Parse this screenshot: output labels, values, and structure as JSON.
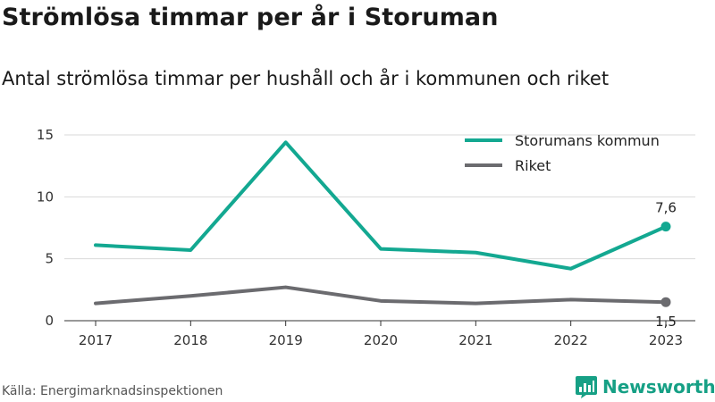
{
  "title": "Strömlösa timmar per år i Storuman",
  "subtitle": "Antal strömlösa timmar per hushåll och år i kommunen och riket",
  "source": "Källa: Energimarknadsinspektionen",
  "brand": {
    "name": "Newsworthy",
    "icon": "newsworthy-logo-icon",
    "color": "#16a085"
  },
  "chart_data": {
    "type": "line",
    "x": [
      "2017",
      "2018",
      "2019",
      "2020",
      "2021",
      "2022",
      "2023"
    ],
    "ylim": [
      0,
      15
    ],
    "yticks": [
      0,
      5,
      10,
      15
    ],
    "grid": true,
    "legend_position": "top-right",
    "series": [
      {
        "name": "Storumans kommun",
        "color": "#13a891",
        "values": [
          6.1,
          5.7,
          14.4,
          5.8,
          5.5,
          4.2,
          7.6
        ],
        "end_label": "7,6"
      },
      {
        "name": "Riket",
        "color": "#6b6b6f",
        "values": [
          1.4,
          2.0,
          2.7,
          1.6,
          1.4,
          1.7,
          1.5
        ],
        "end_label": "1,5"
      }
    ]
  }
}
